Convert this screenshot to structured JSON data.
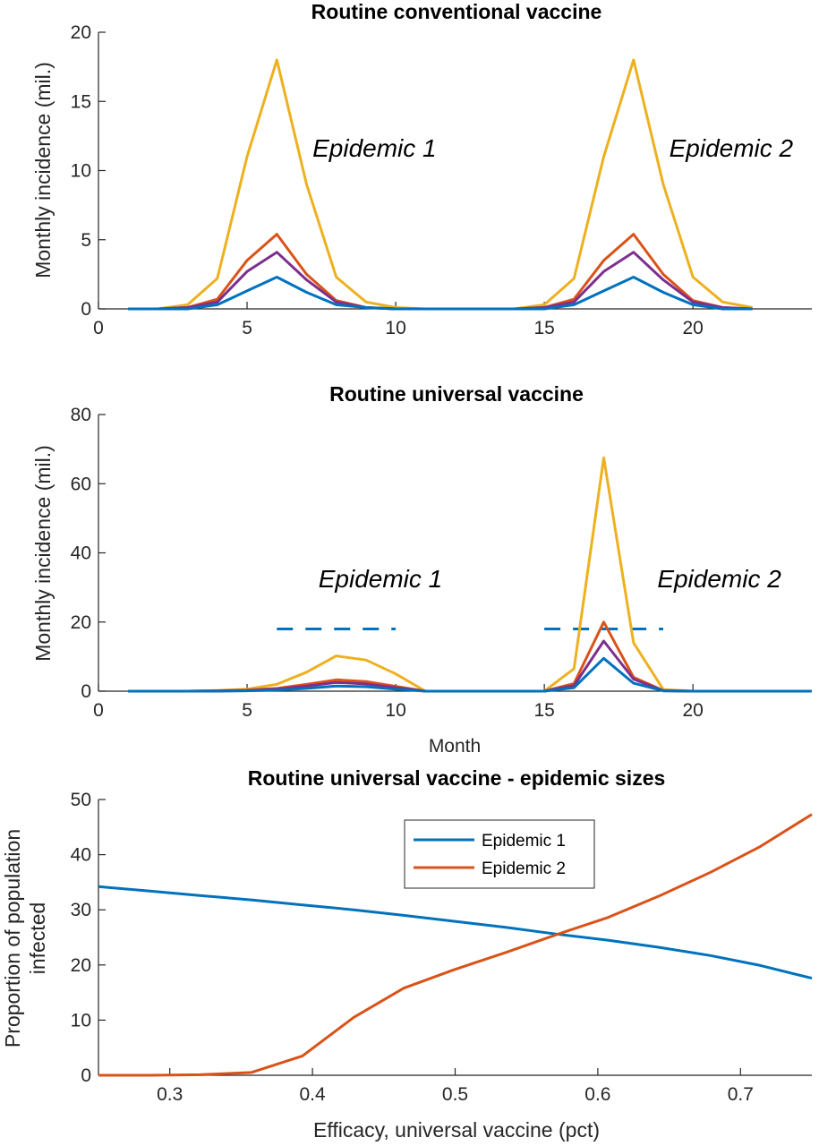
{
  "colors": {
    "blue": "#0072BD",
    "orange": "#D95319",
    "yellow": "#EDB120",
    "purple": "#7E2F8E",
    "axis": "#262626"
  },
  "chart_data": [
    {
      "type": "line",
      "title": "Routine conventional vaccine",
      "xlabel": "",
      "ylabel": "Monthly incidence (mil.)",
      "xlim": [
        0,
        24
      ],
      "ylim": [
        0,
        20
      ],
      "xticks": [
        0,
        5,
        10,
        15,
        20
      ],
      "yticks": [
        0,
        5,
        10,
        15,
        20
      ],
      "annotations": [
        {
          "text": "Epidemic 1",
          "x": 7.2,
          "y": 11.0
        },
        {
          "text": "Epidemic 2",
          "x": 19.2,
          "y": 11.0
        }
      ],
      "x": [
        1,
        2,
        3,
        4,
        5,
        6,
        7,
        8,
        9,
        10,
        11,
        12,
        13,
        14,
        15,
        16,
        17,
        18,
        19,
        20,
        21,
        22
      ],
      "series": [
        {
          "color": "yellow",
          "values": [
            0,
            0,
            0.3,
            2.2,
            11,
            18,
            9,
            2.3,
            0.5,
            0.1,
            0,
            0,
            0,
            0,
            0.3,
            2.2,
            11,
            18,
            9,
            2.3,
            0.5,
            0.1
          ]
        },
        {
          "color": "orange",
          "values": [
            0,
            0,
            0.1,
            0.7,
            3.5,
            5.4,
            2.5,
            0.6,
            0.1,
            0,
            0,
            0,
            0,
            0,
            0.1,
            0.7,
            3.5,
            5.4,
            2.5,
            0.6,
            0.1,
            0
          ]
        },
        {
          "color": "purple",
          "values": [
            0,
            0,
            0.1,
            0.5,
            2.7,
            4.1,
            2.1,
            0.5,
            0.1,
            0,
            0,
            0,
            0,
            0,
            0.1,
            0.5,
            2.7,
            4.1,
            2.1,
            0.5,
            0.1,
            0
          ]
        },
        {
          "color": "blue",
          "values": [
            0,
            0,
            0,
            0.3,
            1.3,
            2.3,
            1.2,
            0.3,
            0.1,
            0,
            0,
            0,
            0,
            0,
            0,
            0.3,
            1.3,
            2.3,
            1.2,
            0.3,
            0,
            0
          ]
        }
      ]
    },
    {
      "type": "line",
      "title": "Routine universal vaccine",
      "xlabel": "Month",
      "ylabel": "Monthly incidence (mil.)",
      "xlim": [
        0,
        24
      ],
      "ylim": [
        0,
        80
      ],
      "xticks": [
        0,
        5,
        10,
        15,
        20
      ],
      "yticks": [
        0,
        20,
        40,
        60,
        80
      ],
      "annotations": [
        {
          "text": "Epidemic 1",
          "x": 7.4,
          "y": 30
        },
        {
          "text": "Epidemic 2",
          "x": 18.8,
          "y": 30
        }
      ],
      "x": [
        1,
        2,
        3,
        4,
        5,
        6,
        7,
        8,
        9,
        10,
        11,
        12,
        13,
        14,
        15,
        16,
        17,
        18,
        19,
        20,
        21,
        22,
        23,
        24
      ],
      "dashed_segments": [
        {
          "color": "blue",
          "x": [
            6,
            10
          ],
          "y": 18
        },
        {
          "color": "blue",
          "x": [
            15,
            19
          ],
          "y": 18
        }
      ],
      "series": [
        {
          "color": "yellow",
          "values": [
            0,
            0,
            0,
            0.2,
            0.6,
            2,
            5.5,
            10.2,
            9,
            5,
            0,
            0,
            0,
            0,
            0,
            6.5,
            67.5,
            14,
            0.5,
            0,
            0,
            0,
            0,
            0
          ]
        },
        {
          "color": "orange",
          "values": [
            0,
            0,
            0,
            0.1,
            0.3,
            0.8,
            2,
            3.3,
            2.8,
            1.4,
            0,
            0,
            0,
            0,
            0,
            2.2,
            20,
            4,
            0.2,
            0,
            0,
            0,
            0,
            0
          ]
        },
        {
          "color": "purple",
          "values": [
            0,
            0,
            0,
            0.1,
            0.2,
            0.6,
            1.5,
            2.5,
            2.1,
            1,
            0,
            0,
            0,
            0,
            0,
            1.6,
            14.5,
            3.5,
            0.1,
            0,
            0,
            0,
            0,
            0
          ]
        },
        {
          "color": "blue",
          "values": [
            0,
            0,
            0,
            0,
            0.1,
            0.3,
            0.8,
            1.5,
            1.3,
            0.6,
            0,
            0,
            0,
            0,
            0,
            1,
            9.5,
            2.3,
            0.1,
            0,
            0,
            0,
            0,
            0
          ]
        }
      ]
    },
    {
      "type": "line",
      "title": "Routine universal vaccine - epidemic sizes",
      "xlabel": "Efficacy, universal vaccine (pct)",
      "ylabel_lines": [
        "Proportion of population",
        "infected"
      ],
      "xlim": [
        0.25,
        0.75
      ],
      "ylim": [
        0,
        50
      ],
      "xticks": [
        0.3,
        0.4,
        0.5,
        0.6,
        0.7
      ],
      "xtick_labels": [
        "0.3",
        "0.4",
        "0.5",
        "0.6",
        "0.7"
      ],
      "yticks": [
        0,
        10,
        20,
        30,
        40,
        50
      ],
      "legend_position": "top-center",
      "x": [
        0.25,
        0.286,
        0.321,
        0.357,
        0.393,
        0.429,
        0.464,
        0.5,
        0.536,
        0.571,
        0.607,
        0.643,
        0.679,
        0.714,
        0.75
      ],
      "series": [
        {
          "name": "Epidemic 1",
          "color": "blue",
          "values": [
            34.2,
            33.4,
            32.6,
            31.8,
            30.9,
            30.0,
            29.0,
            27.9,
            26.8,
            25.6,
            24.5,
            23.2,
            21.7,
            19.9,
            17.6
          ]
        },
        {
          "name": "Epidemic 2",
          "color": "orange",
          "values": [
            0,
            0,
            0.1,
            0.5,
            3.5,
            10.5,
            15.8,
            19.2,
            22.3,
            25.5,
            28.6,
            32.5,
            36.8,
            41.5,
            47.3
          ]
        }
      ]
    }
  ]
}
